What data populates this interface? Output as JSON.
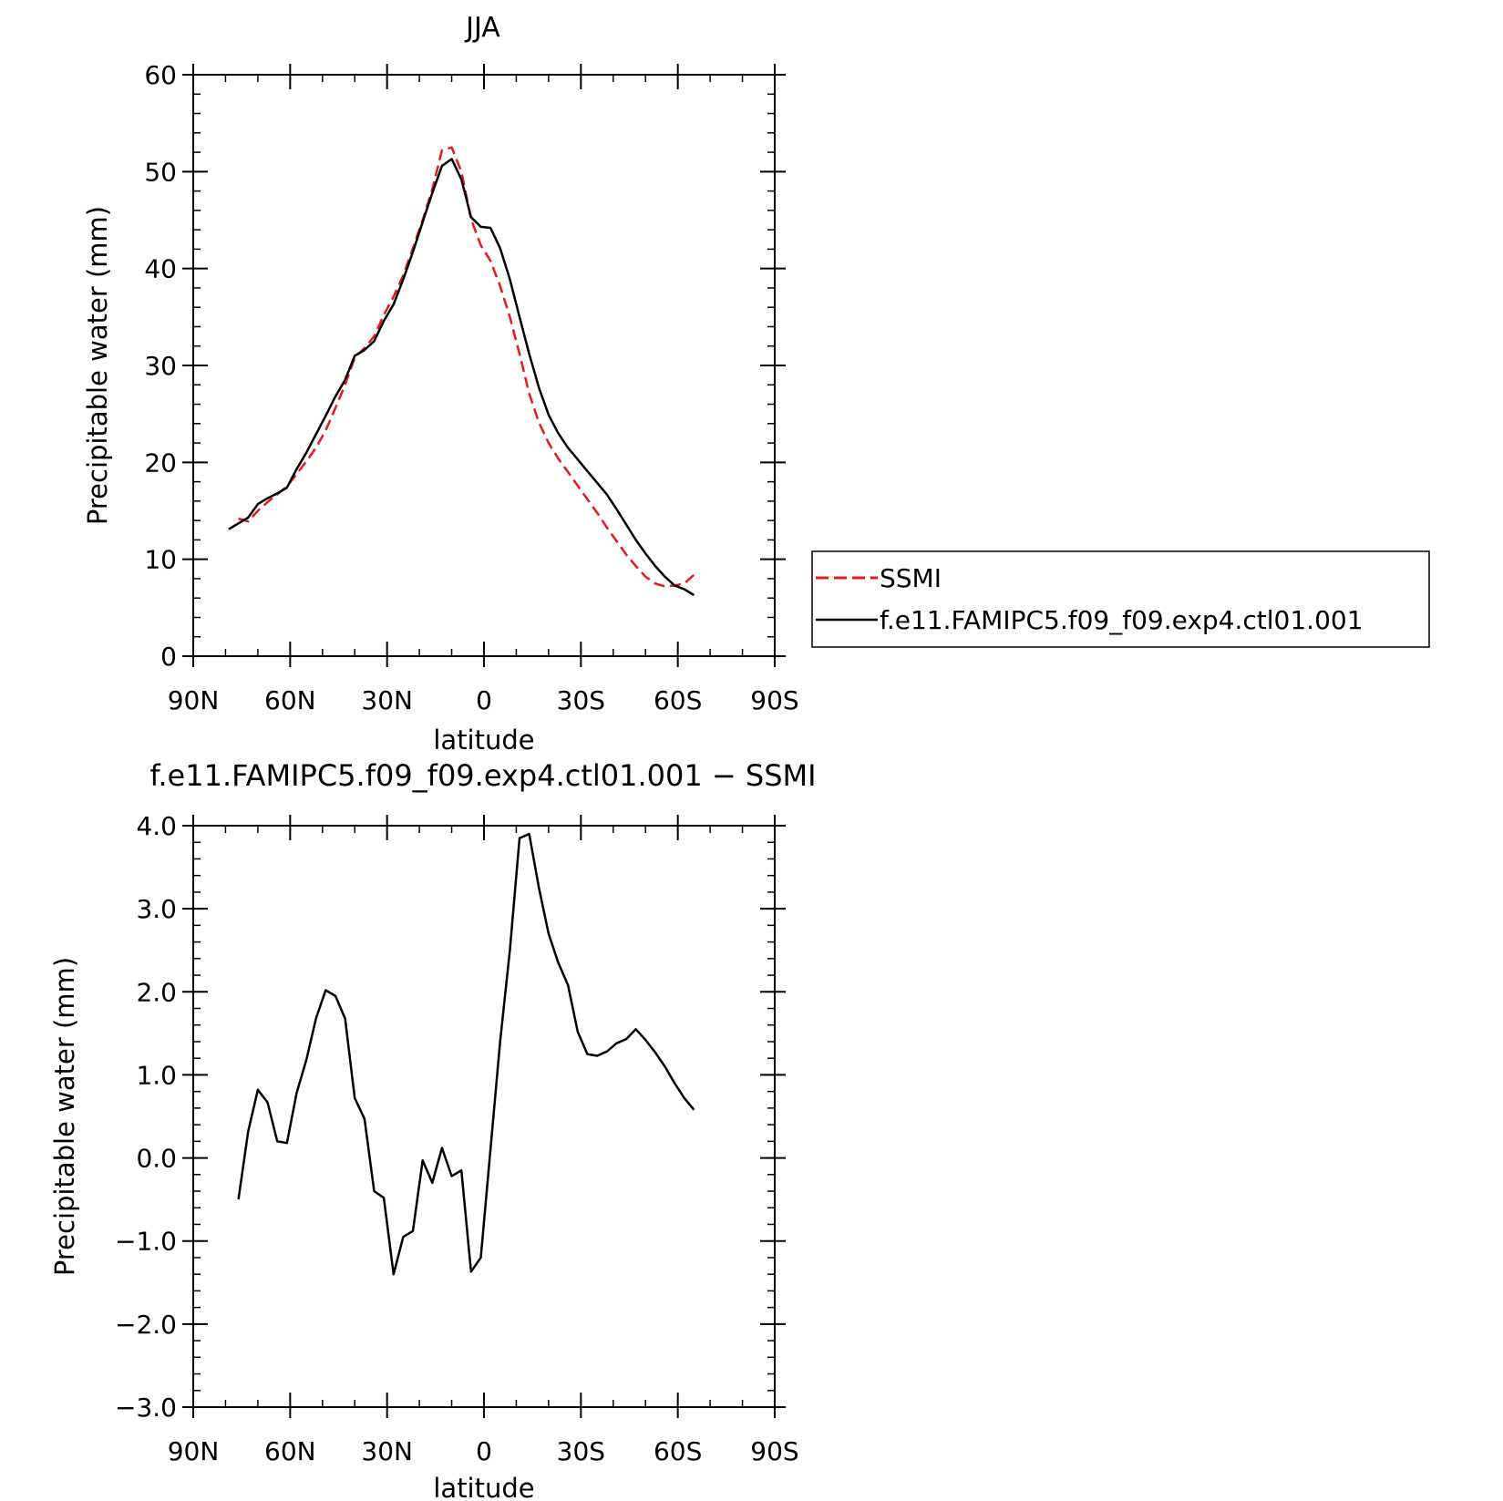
{
  "chart_data": [
    {
      "type": "line",
      "title": "JJA",
      "xlabel": "latitude",
      "ylabel": "Precipitable water (mm)",
      "x_tick_values": [
        90,
        60,
        30,
        0,
        -30,
        -60,
        -90
      ],
      "x_tick_labels": [
        "90N",
        "60N",
        "30N",
        "0",
        "30S",
        "60S",
        "90S"
      ],
      "xlim": [
        90,
        -90
      ],
      "ylim": [
        0,
        60
      ],
      "y_tick_values": [
        0,
        10,
        20,
        30,
        40,
        50,
        60
      ],
      "y_tick_labels": [
        "0",
        "10",
        "20",
        "30",
        "40",
        "50",
        "60"
      ],
      "legend": {
        "placement": "right",
        "entries": [
          {
            "name": "SSMI",
            "color": "#e41a1c",
            "dash": true
          },
          {
            "name": "f.e11.FAMIPC5.f09_f09.exp4.ctl01.001",
            "color": "#000000",
            "dash": false
          }
        ]
      },
      "series": [
        {
          "name": "SSMI",
          "color": "#e41a1c",
          "dash": true,
          "x": [
            76,
            73,
            70,
            67,
            64,
            61,
            58,
            55,
            52,
            49,
            46,
            43,
            40,
            37,
            34,
            31,
            28,
            25,
            22,
            19,
            16,
            13,
            10,
            7,
            4,
            1,
            -2,
            -5,
            -8,
            -11,
            -14,
            -17,
            -20,
            -23,
            -26,
            -29,
            -32,
            -35,
            -38,
            -41,
            -44,
            -47,
            -50,
            -53,
            -56,
            -59,
            -62,
            -65
          ],
          "y": [
            14.2,
            13.9,
            15.0,
            15.9,
            16.7,
            17.5,
            18.8,
            20.1,
            21.5,
            23.3,
            25.6,
            28.0,
            30.8,
            31.8,
            33.0,
            35.2,
            37.1,
            39.3,
            42.1,
            45.0,
            48.2,
            52.2,
            52.5,
            50.0,
            45.1,
            42.4,
            40.8,
            38.2,
            35.0,
            31.2,
            27.1,
            24.1,
            22.0,
            20.4,
            19.0,
            17.6,
            16.2,
            14.8,
            13.3,
            11.9,
            10.5,
            9.3,
            8.2,
            7.5,
            7.2,
            7.3,
            7.5,
            8.4
          ]
        },
        {
          "name": "f.e11.FAMIPC5.f09_f09.exp4.ctl01.001",
          "color": "#000000",
          "dash": false,
          "x": [
            79,
            76,
            73,
            70,
            67,
            64,
            61,
            58,
            55,
            52,
            49,
            46,
            43,
            40,
            37,
            34,
            31,
            28,
            25,
            22,
            19,
            16,
            13,
            10,
            7,
            4,
            1,
            -2,
            -5,
            -8,
            -11,
            -14,
            -17,
            -20,
            -23,
            -26,
            -29,
            -32,
            -35,
            -38,
            -41,
            -44,
            -47,
            -50,
            -53,
            -56,
            -59,
            -62,
            -65
          ],
          "y": [
            13.1,
            13.7,
            14.3,
            15.7,
            16.3,
            16.8,
            17.4,
            19.3,
            21.0,
            22.9,
            24.8,
            26.8,
            28.5,
            31.0,
            31.6,
            32.5,
            34.6,
            36.3,
            38.9,
            41.7,
            44.8,
            47.8,
            50.6,
            51.3,
            49.2,
            45.3,
            44.3,
            44.2,
            42.1,
            38.9,
            35.0,
            31.2,
            27.7,
            24.9,
            23.0,
            21.5,
            20.3,
            19.1,
            17.9,
            16.7,
            15.2,
            13.6,
            12.0,
            10.6,
            9.3,
            8.2,
            7.3,
            6.9,
            6.3
          ]
        }
      ]
    },
    {
      "type": "line",
      "title": "f.e11.FAMIPC5.f09_f09.exp4.ctl01.001  −  SSMI",
      "xlabel": "latitude",
      "ylabel": "Precipitable water (mm)",
      "x_tick_values": [
        90,
        60,
        30,
        0,
        -30,
        -60,
        -90
      ],
      "x_tick_labels": [
        "90N",
        "60N",
        "30N",
        "0",
        "30S",
        "60S",
        "90S"
      ],
      "xlim": [
        90,
        -90
      ],
      "ylim": [
        -3.0,
        4.0
      ],
      "y_tick_values": [
        -3.0,
        -2.0,
        -1.0,
        0.0,
        1.0,
        2.0,
        3.0,
        4.0
      ],
      "y_tick_labels": [
        "−3.0",
        "−2.0",
        "−1.0",
        "0.0",
        "1.0",
        "2.0",
        "3.0",
        "4.0"
      ],
      "series": [
        {
          "color": "#000000",
          "dash": false,
          "x": [
            76,
            73,
            70,
            67,
            64,
            61,
            58,
            55,
            52,
            49,
            46,
            43,
            40,
            37,
            34,
            31,
            28,
            25,
            22,
            19,
            16,
            13,
            10,
            7,
            4,
            1,
            -2,
            -5,
            -8,
            -11,
            -14,
            -17,
            -20,
            -23,
            -26,
            -29,
            -32,
            -35,
            -38,
            -41,
            -44,
            -47,
            -50,
            -53,
            -56,
            -59,
            -62,
            -65
          ],
          "y": [
            -0.5,
            0.32,
            0.82,
            0.67,
            0.2,
            0.18,
            0.78,
            1.18,
            1.68,
            2.02,
            1.95,
            1.68,
            0.72,
            0.47,
            -0.4,
            -0.48,
            -1.4,
            -0.95,
            -0.88,
            -0.03,
            -0.3,
            0.12,
            -0.22,
            -0.15,
            -1.37,
            -1.2,
            0.1,
            1.4,
            2.5,
            3.85,
            3.9,
            3.25,
            2.7,
            2.35,
            2.08,
            1.52,
            1.25,
            1.23,
            1.28,
            1.38,
            1.43,
            1.55,
            1.42,
            1.27,
            1.1,
            0.9,
            0.72,
            0.58
          ]
        }
      ]
    }
  ]
}
